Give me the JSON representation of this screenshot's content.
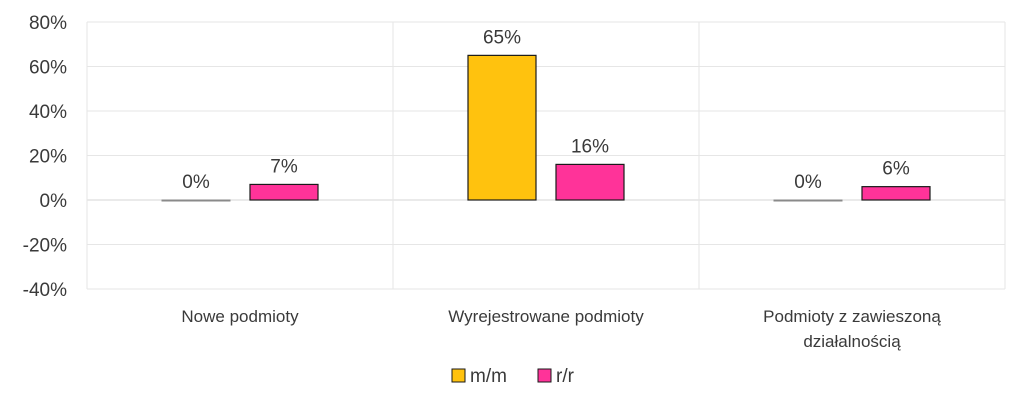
{
  "chart_data": {
    "type": "bar",
    "categories": [
      [
        "Nowe podmioty"
      ],
      [
        "Wyrejestrowane podmioty"
      ],
      [
        "Podmioty z zawieszoną",
        "działalnością"
      ]
    ],
    "series": [
      {
        "name": "m/m",
        "values": [
          0,
          65,
          0
        ],
        "labels": [
          "0%",
          "65%",
          "0%"
        ],
        "color": "#FFC20E"
      },
      {
        "name": "r/r",
        "values": [
          7,
          16,
          6
        ],
        "labels": [
          "7%",
          "16%",
          "6%"
        ],
        "color": "#FF3399"
      }
    ],
    "y_ticks": [
      "80%",
      "60%",
      "40%",
      "20%",
      "0%",
      "-20%",
      "-40%"
    ],
    "ylim": [
      -40,
      80
    ],
    "y_unit": "%",
    "legend_position": "bottom",
    "grid": true,
    "colors": {
      "gridline": "#e6e6e6",
      "bar_stroke": "#1a1a1a",
      "text": "#3a3a3a"
    }
  }
}
